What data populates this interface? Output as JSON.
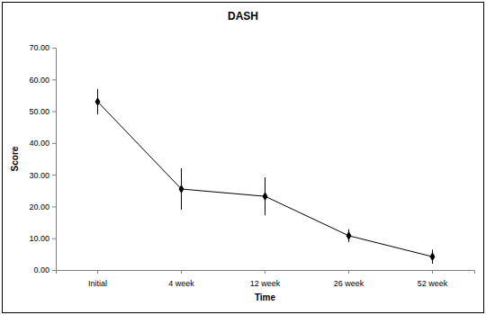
{
  "chart_data": {
    "type": "line",
    "title": "DASH",
    "x_label": "Time",
    "y_label": "Score",
    "categories": [
      "Initial",
      "4 week",
      "12 week",
      "26 week",
      "52 week"
    ],
    "values": [
      53.0,
      25.5,
      23.2,
      10.8,
      4.2
    ],
    "errors": [
      4.0,
      6.5,
      6.0,
      2.0,
      2.2
    ],
    "color": "#000000",
    "marker": "diamond",
    "line_style": "solid",
    "ylim": [
      0,
      70
    ],
    "yticks": [
      {
        "value": 0,
        "label": "0.00"
      },
      {
        "value": 10,
        "label": "10.00"
      },
      {
        "value": 20,
        "label": "20.00"
      },
      {
        "value": 30,
        "label": "30.00"
      },
      {
        "value": 40,
        "label": "40.00"
      },
      {
        "value": 50,
        "label": "50.00"
      },
      {
        "value": 60,
        "label": "60.00"
      },
      {
        "value": 70,
        "label": "70.00"
      }
    ],
    "grid": false
  }
}
